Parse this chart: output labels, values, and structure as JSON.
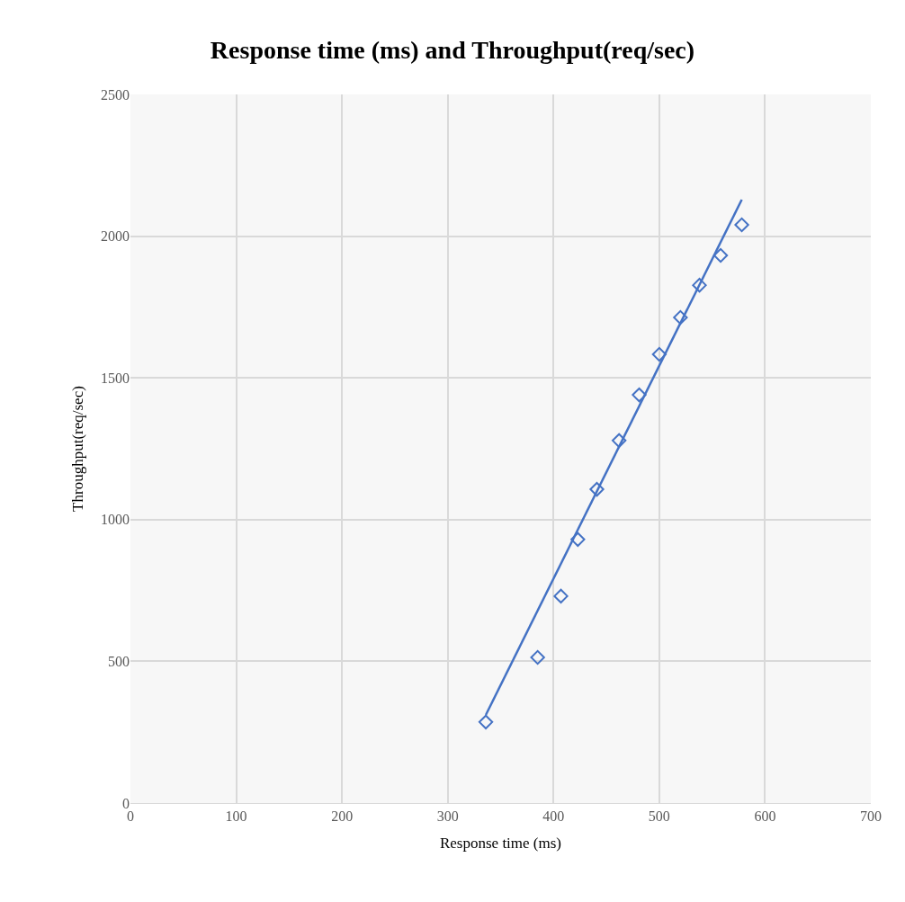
{
  "chart_data": {
    "type": "scatter",
    "title": "Response time (ms) and Throughput(req/sec)",
    "xlabel": "Response time (ms)",
    "ylabel": "Throughput(req/sec)",
    "xlim": [
      0,
      700
    ],
    "xticks": [
      0,
      100,
      200,
      300,
      400,
      500,
      600,
      700
    ],
    "ylim": [
      0,
      2500
    ],
    "yticks": [
      0,
      500,
      1000,
      1500,
      2000,
      2500
    ],
    "grid": true,
    "marker": "diamond",
    "series": [
      {
        "color": "#4472c4",
        "x": [
          336,
          385,
          407,
          423,
          441,
          462,
          481,
          500,
          520,
          538,
          558,
          578
        ],
        "values": [
          286,
          514,
          730,
          930,
          1107,
          1279,
          1440,
          1583,
          1713,
          1827,
          1932,
          2040
        ]
      },
      {
        "type": "line",
        "color": "#4472c4",
        "x": [
          336,
          578
        ],
        "values": [
          311,
          2129
        ],
        "marker": "none"
      }
    ]
  }
}
